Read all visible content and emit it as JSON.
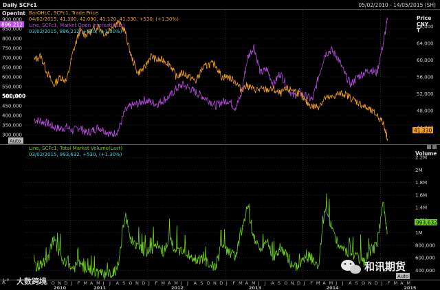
{
  "header": {
    "title": "Daily SCFc1",
    "date_range": "05/02/2010 - 14/05/2015 (SH)"
  },
  "top_panel": {
    "left_axis_title": "OpenInt",
    "right_axis_title_lines": [
      "Price",
      "CNY",
      "T"
    ],
    "left_ticks": [
      "900,000",
      "850,000",
      "800,000",
      "750,000",
      "700,000",
      "650,000",
      "600,000",
      "550,000",
      "500,000",
      "450,000",
      "400,000",
      "350,000",
      "300,000"
    ],
    "left_bold_tick": "500,000",
    "right_ticks": [
      "68,000",
      "64,000",
      "60,000",
      "56,000",
      "52,000",
      "48,000",
      "44,000"
    ],
    "legend": {
      "line1": "BarOHLC, SCFc1, Trade Price",
      "line2": "04/02/2015, 41,300, 42,090, 41,120, 41,330, +530, (+1.30%)",
      "line3": "Line, SCFc1, Market Open Interest(Last)",
      "line4": "03/02/2015, 896,212, +530, (+1.30%)"
    },
    "oi_last_badge": "896,212",
    "price_last_badge": "41,330",
    "auto_label": "Auto"
  },
  "bottom_panel": {
    "right_axis_title": "Volume",
    "right_ticks": [
      "2.2M",
      "2M",
      "1.8M",
      "1.6M",
      "1.4M",
      "1.2M",
      "1M",
      "800,000",
      "600,000",
      "400,000"
    ],
    "legend": {
      "line1": "Line, SCFc1, Total Market Volume(Last)",
      "line2": "03/02/2015, 993,632, +530, (+1.30%)"
    },
    "volume_last_badge": "993,632",
    "auto_label": "Auto"
  },
  "x_axis": {
    "month_labels": [
      "A",
      "S",
      "O",
      "N",
      "D",
      "J",
      "F",
      "M",
      "A",
      "M",
      "J",
      "J",
      "A",
      "S",
      "O",
      "N",
      "D",
      "J",
      "F",
      "M",
      "A",
      "M",
      "J",
      "J",
      "A",
      "S",
      "O",
      "N",
      "D",
      "J",
      "F",
      "M",
      "A",
      "M",
      "J",
      "J",
      "A",
      "S",
      "O",
      "N",
      "D",
      "J",
      "F",
      "M",
      "A",
      "M",
      "J",
      "J",
      "A",
      "S",
      "O",
      "N",
      "D",
      "J",
      "F",
      "M",
      "A",
      "M"
    ],
    "year_labels": [
      "2010",
      "2011",
      "2012",
      "2013",
      "2014",
      "2015"
    ]
  },
  "watermarks": {
    "left_text": "大数跨境",
    "right_text": "和讯期货"
  },
  "colors": {
    "price": "#f5a020",
    "open_interest": "#b84de0",
    "volume": "#6fd21e",
    "legend_cyan": "#40d8e8",
    "grid": "#3a3a3a",
    "badge_gray": "#b8b8b8"
  },
  "chart_data": [
    {
      "type": "line",
      "series": [
        {
          "name": "Trade Price",
          "axis": "right",
          "x": [
            "2010-07-15",
            "2010-08-15",
            "2010-09-15",
            "2010-10-15",
            "2010-11-15",
            "2010-12-15",
            "2011-01-15",
            "2011-02-15",
            "2011-03-15",
            "2011-04-15",
            "2011-05-15",
            "2011-06-15",
            "2011-07-15",
            "2011-08-15",
            "2011-09-15",
            "2011-10-15",
            "2011-11-15",
            "2011-12-15",
            "2012-01-15",
            "2012-02-15",
            "2012-03-15",
            "2012-04-15",
            "2012-05-15",
            "2012-06-15",
            "2012-07-15",
            "2012-08-15",
            "2012-09-15",
            "2012-10-15",
            "2012-11-15",
            "2012-12-15",
            "2013-01-15",
            "2013-02-15",
            "2013-03-15",
            "2013-04-15",
            "2013-05-15",
            "2013-06-15",
            "2013-07-15",
            "2013-08-15",
            "2013-09-15",
            "2013-10-15",
            "2013-11-15",
            "2013-12-15",
            "2014-01-15",
            "2014-02-15",
            "2014-03-15",
            "2014-04-15",
            "2014-05-15",
            "2014-06-15",
            "2014-07-15",
            "2014-08-15",
            "2014-09-15",
            "2014-10-15",
            "2014-11-15",
            "2014-12-15",
            "2015-01-15",
            "2015-02-04"
          ],
          "values": [
            60000,
            61000,
            57000,
            54000,
            56000,
            55000,
            62000,
            67000,
            66000,
            67000,
            68000,
            66000,
            68000,
            69000,
            67000,
            61000,
            57000,
            58000,
            61000,
            60000,
            60000,
            59000,
            56000,
            57000,
            56000,
            55000,
            58000,
            59000,
            59000,
            56000,
            56000,
            55000,
            53000,
            54000,
            53000,
            53000,
            53000,
            53000,
            52000,
            53000,
            53000,
            52000,
            50000,
            49000,
            49000,
            51000,
            51000,
            52000,
            52000,
            51000,
            50000,
            49000,
            48000,
            47000,
            45000,
            41330
          ]
        },
        {
          "name": "Market Open Interest(Last)",
          "axis": "left",
          "x": [
            "2010-07-15",
            "2010-08-15",
            "2010-09-15",
            "2010-10-15",
            "2010-11-15",
            "2010-12-15",
            "2011-01-15",
            "2011-02-15",
            "2011-03-15",
            "2011-04-15",
            "2011-05-15",
            "2011-06-15",
            "2011-07-15",
            "2011-08-15",
            "2011-09-15",
            "2011-10-15",
            "2011-11-15",
            "2011-12-15",
            "2012-01-15",
            "2012-02-15",
            "2012-03-15",
            "2012-04-15",
            "2012-05-15",
            "2012-06-15",
            "2012-07-15",
            "2012-08-15",
            "2012-09-15",
            "2012-10-15",
            "2012-11-15",
            "2012-12-15",
            "2013-01-15",
            "2013-02-15",
            "2013-03-15",
            "2013-04-15",
            "2013-05-15",
            "2013-06-15",
            "2013-07-15",
            "2013-08-15",
            "2013-09-15",
            "2013-10-15",
            "2013-11-15",
            "2013-12-15",
            "2014-01-15",
            "2014-02-15",
            "2014-03-15",
            "2014-04-15",
            "2014-05-15",
            "2014-06-15",
            "2014-07-15",
            "2014-08-15",
            "2014-09-15",
            "2014-10-15",
            "2014-11-15",
            "2014-12-15",
            "2015-01-15",
            "2015-02-03"
          ],
          "values": [
            380000,
            370000,
            360000,
            340000,
            330000,
            340000,
            320000,
            340000,
            310000,
            320000,
            340000,
            320000,
            300000,
            320000,
            420000,
            450000,
            460000,
            480000,
            470000,
            460000,
            480000,
            500000,
            540000,
            560000,
            540000,
            520000,
            500000,
            480000,
            450000,
            470000,
            480000,
            440000,
            500000,
            700000,
            760000,
            620000,
            640000,
            560000,
            620000,
            560000,
            500000,
            520000,
            500000,
            480000,
            600000,
            720000,
            740000,
            700000,
            620000,
            560000,
            600000,
            620000,
            640000,
            620000,
            780000,
            896212
          ]
        }
      ],
      "left_axis_range": [
        250000,
        950000
      ],
      "right_axis_range": [
        40000,
        72000
      ],
      "grid": true
    },
    {
      "type": "line",
      "series": [
        {
          "name": "Total Market Volume(Last)",
          "axis": "right",
          "x": [
            "2010-07-15",
            "2010-08-15",
            "2010-09-15",
            "2010-10-15",
            "2010-11-15",
            "2010-12-15",
            "2011-01-15",
            "2011-02-15",
            "2011-03-15",
            "2011-04-15",
            "2011-05-15",
            "2011-06-15",
            "2011-07-15",
            "2011-08-15",
            "2011-09-15",
            "2011-10-15",
            "2011-11-15",
            "2011-12-15",
            "2012-01-15",
            "2012-02-15",
            "2012-03-15",
            "2012-04-15",
            "2012-05-15",
            "2012-06-15",
            "2012-07-15",
            "2012-08-15",
            "2012-09-15",
            "2012-10-15",
            "2012-11-15",
            "2012-12-15",
            "2013-01-15",
            "2013-02-15",
            "2013-03-15",
            "2013-04-15",
            "2013-05-15",
            "2013-06-15",
            "2013-07-15",
            "2013-08-15",
            "2013-09-15",
            "2013-10-15",
            "2013-11-15",
            "2013-12-15",
            "2014-01-15",
            "2014-02-15",
            "2014-03-15",
            "2014-04-15",
            "2014-05-15",
            "2014-06-15",
            "2014-07-15",
            "2014-08-15",
            "2014-09-15",
            "2014-10-15",
            "2014-11-15",
            "2014-12-15",
            "2015-01-15",
            "2015-02-03"
          ],
          "values": [
            450000,
            500000,
            560000,
            900000,
            620000,
            480000,
            440000,
            500000,
            420000,
            380000,
            340000,
            330000,
            360000,
            420000,
            1300000,
            900000,
            800000,
            650000,
            720000,
            800000,
            700000,
            900000,
            700000,
            750000,
            620000,
            560000,
            580000,
            500000,
            450000,
            800000,
            700000,
            600000,
            1000000,
            1400000,
            900000,
            750000,
            900000,
            600000,
            750000,
            650000,
            450000,
            500000,
            650000,
            560000,
            480000,
            1400000,
            1100000,
            800000,
            700000,
            650000,
            600000,
            520000,
            700000,
            800000,
            1500000,
            993632
          ]
        }
      ],
      "right_axis_range": [
        250000,
        2400000
      ],
      "grid": true
    }
  ]
}
